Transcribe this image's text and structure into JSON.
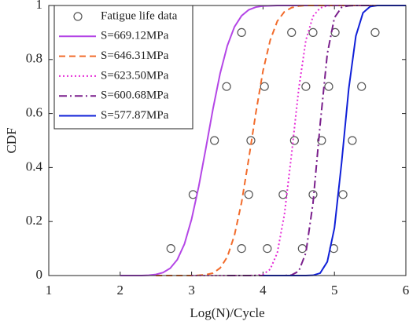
{
  "chart_data": {
    "type": "line",
    "xlabel": "Log(N)/Cycle",
    "ylabel": "CDF",
    "xlim": [
      1,
      6
    ],
    "ylim": [
      0,
      1
    ],
    "xticks": [
      1,
      2,
      3,
      4,
      5,
      6
    ],
    "yticks": [
      0,
      0.2,
      0.4,
      0.6,
      0.8,
      1
    ],
    "grid": false,
    "legend": "upper left",
    "x": [
      2.0,
      2.1,
      2.2,
      2.3,
      2.4,
      2.5,
      2.6,
      2.7,
      2.8,
      2.9,
      3.0,
      3.1,
      3.2,
      3.3,
      3.4,
      3.5,
      3.6,
      3.7,
      3.8,
      3.9,
      4.0,
      4.1,
      4.2,
      4.3,
      4.4,
      4.5,
      4.6,
      4.7,
      4.8,
      4.9,
      5.0,
      5.1,
      5.2,
      5.3,
      5.4,
      5.5,
      5.6,
      5.7,
      5.8,
      5.9,
      6.0
    ],
    "series": [
      {
        "name": "Fatigue life data",
        "type": "scatter",
        "color": "#555555",
        "x": [
          2.71,
          3.02,
          3.32,
          3.49,
          3.7,
          3.7,
          3.8,
          3.83,
          4.02,
          4.4,
          4.06,
          4.28,
          4.44,
          4.6,
          4.7,
          4.55,
          4.7,
          4.82,
          4.92,
          5.01,
          4.99,
          5.12,
          5.25,
          5.38,
          5.57
        ],
        "values": [
          0.1,
          0.3,
          0.5,
          0.7,
          0.9,
          0.1,
          0.3,
          0.5,
          0.7,
          0.9,
          0.1,
          0.3,
          0.5,
          0.7,
          0.9,
          0.1,
          0.3,
          0.5,
          0.7,
          0.9,
          0.1,
          0.3,
          0.5,
          0.7,
          0.9
        ]
      },
      {
        "name": "S=669.12MPa",
        "type": "line",
        "color": "#b446e6",
        "dash": "solid",
        "values": [
          0,
          0,
          0,
          0,
          0.001,
          0.004,
          0.011,
          0.027,
          0.059,
          0.117,
          0.209,
          0.33,
          0.472,
          0.618,
          0.749,
          0.851,
          0.921,
          0.962,
          0.984,
          0.994,
          0.998,
          0.999,
          1,
          1,
          1,
          1,
          1,
          1,
          1,
          1,
          1,
          1,
          1,
          1,
          1,
          1,
          1,
          1,
          1,
          1,
          1
        ]
      },
      {
        "name": "S=646.31MPa",
        "type": "line",
        "color": "#f26b2b",
        "dash": "dashed",
        "values": [
          null,
          null,
          null,
          null,
          null,
          0,
          0,
          0,
          0,
          0,
          0,
          0.001,
          0.003,
          0.009,
          0.028,
          0.069,
          0.149,
          0.271,
          0.432,
          0.603,
          0.758,
          0.871,
          0.942,
          0.977,
          0.992,
          0.998,
          1,
          1,
          1,
          1,
          1,
          1,
          1,
          1,
          1,
          1,
          1,
          1,
          1,
          1,
          1
        ]
      },
      {
        "name": "S=623.50MPa",
        "type": "line",
        "color": "#e62ed8",
        "dash": "dotted",
        "values": [
          null,
          null,
          null,
          null,
          null,
          null,
          null,
          null,
          null,
          null,
          0,
          0,
          0,
          0,
          0,
          0,
          0,
          0,
          0,
          0.001,
          0.004,
          0.023,
          0.084,
          0.227,
          0.45,
          0.691,
          0.871,
          0.96,
          0.991,
          0.999,
          1,
          1,
          1,
          1,
          1,
          1,
          1,
          1,
          1,
          1,
          1
        ]
      },
      {
        "name": "S=600.68MPa",
        "type": "line",
        "color": "#7a1f8c",
        "dash": "dashdot",
        "values": [
          null,
          null,
          null,
          null,
          null,
          null,
          null,
          null,
          null,
          null,
          null,
          null,
          null,
          null,
          null,
          0,
          0,
          0,
          0,
          0,
          0,
          0,
          0,
          0,
          0.002,
          0.016,
          0.084,
          0.268,
          0.56,
          0.821,
          0.955,
          0.993,
          0.999,
          1,
          1,
          1,
          1,
          1,
          1,
          1,
          1
        ]
      },
      {
        "name": "S=577.87MPa",
        "type": "line",
        "color": "#1020d8",
        "dash": "solid",
        "values": [
          null,
          null,
          null,
          null,
          null,
          null,
          null,
          null,
          null,
          null,
          null,
          null,
          null,
          null,
          null,
          null,
          null,
          null,
          null,
          null,
          0,
          0,
          0,
          0,
          0,
          0,
          0,
          0.001,
          0.009,
          0.051,
          0.176,
          0.417,
          0.691,
          0.887,
          0.973,
          0.996,
          1,
          1,
          1,
          1,
          1
        ]
      }
    ]
  }
}
